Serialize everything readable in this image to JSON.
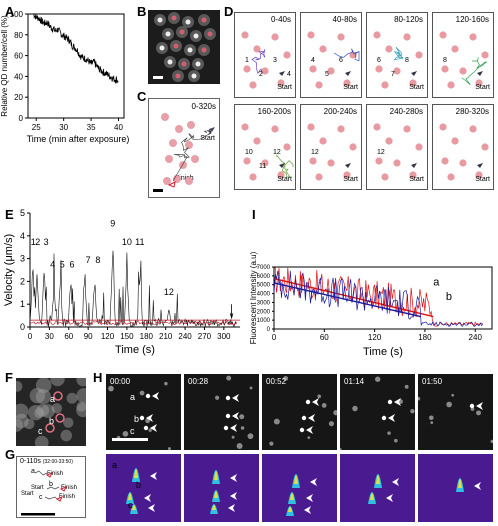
{
  "panels": {
    "A": {
      "label": "A"
    },
    "B": {
      "label": "B"
    },
    "C": {
      "label": "C",
      "time": "0-320s",
      "start": "Start",
      "finish": "Finish"
    },
    "D": {
      "label": "D",
      "frames": [
        {
          "t": "0-40s",
          "start": "Start",
          "nums": [
            "1",
            "2",
            "3",
            "4"
          ]
        },
        {
          "t": "40-80s",
          "start": "Start",
          "nums": [
            "4",
            "5",
            "6"
          ]
        },
        {
          "t": "80-120s",
          "start": "Start",
          "nums": [
            "6",
            "7",
            "8"
          ]
        },
        {
          "t": "120-160s",
          "start": "Start",
          "nums": [
            "8"
          ]
        },
        {
          "t": "160-200s",
          "start": "Start",
          "nums": [
            "10",
            "11",
            "12"
          ]
        },
        {
          "t": "200-240s",
          "start": "Start",
          "nums": [
            "12"
          ]
        },
        {
          "t": "240-280s",
          "start": "Start",
          "nums": [
            "12"
          ]
        },
        {
          "t": "280-320s",
          "start": "Start",
          "nums": []
        }
      ]
    },
    "E": {
      "label": "E"
    },
    "F": {
      "label": "F",
      "spots": [
        "a",
        "b",
        "c"
      ]
    },
    "G": {
      "label": "G",
      "time": "0-110s",
      "sub": "(32:00-33:50)",
      "start": "Start",
      "finish": "Finish",
      "spots": [
        "a",
        "b",
        "c"
      ]
    },
    "H": {
      "label": "H",
      "frames": [
        "00:00",
        "00:28",
        "00:52",
        "01:14",
        "01:50"
      ],
      "spots": [
        "a",
        "b",
        "c"
      ]
    },
    "I": {
      "label": "I"
    }
  },
  "chart_data": [
    {
      "panel": "A",
      "type": "line",
      "xlabel": "Time (min after exposure)",
      "ylabel": "Relative QD number/cell (%)",
      "xlim": [
        23.5,
        41
      ],
      "ylim": [
        0,
        100
      ],
      "xticks": [
        25,
        30,
        35,
        40
      ],
      "yticks": [
        0,
        20,
        40,
        60,
        80,
        100
      ],
      "x": [
        24.5,
        25,
        25.5,
        26,
        26.5,
        27,
        27.5,
        28,
        28.5,
        29,
        29.5,
        30,
        30.5,
        31,
        31.5,
        32,
        32.5,
        33,
        33.5,
        34,
        34.5,
        35,
        35.5,
        36,
        36.5,
        37,
        37.5,
        38,
        38.5,
        39,
        39.5,
        40
      ],
      "values": [
        100,
        97,
        96,
        93,
        91,
        92,
        88,
        86,
        84,
        85,
        81,
        79,
        77,
        75,
        70,
        68,
        65,
        60,
        58,
        57,
        55,
        52,
        54,
        50,
        47,
        45,
        43,
        42,
        40,
        38,
        37,
        36
      ]
    },
    {
      "panel": "E",
      "type": "line",
      "xlabel": "Time (s)",
      "ylabel": "Velocity (μm/s)",
      "xlim": [
        0,
        325
      ],
      "ylim": [
        0,
        5
      ],
      "xticks": [
        0,
        30,
        60,
        90,
        120,
        150,
        180,
        210,
        240,
        270,
        300
      ],
      "yticks": [
        0,
        1,
        2,
        3,
        4,
        5
      ],
      "threshold": 0.3,
      "annotations": [
        {
          "text": "1",
          "x": 5,
          "y": 3.6
        },
        {
          "text": "2",
          "x": 12,
          "y": 3.6
        },
        {
          "text": "3",
          "x": 25,
          "y": 3.6
        },
        {
          "text": "4",
          "x": 35,
          "y": 2.6
        },
        {
          "text": "5",
          "x": 50,
          "y": 2.6
        },
        {
          "text": "6",
          "x": 65,
          "y": 2.6
        },
        {
          "text": "7",
          "x": 90,
          "y": 2.8
        },
        {
          "text": "8",
          "x": 105,
          "y": 2.8
        },
        {
          "text": "9",
          "x": 128,
          "y": 4.4
        },
        {
          "text": "10",
          "x": 150,
          "y": 3.6
        },
        {
          "text": "11",
          "x": 170,
          "y": 3.6
        },
        {
          "text": "12",
          "x": 215,
          "y": 1.4
        }
      ],
      "peaks": [
        {
          "x": 4,
          "y": 3.2
        },
        {
          "x": 11,
          "y": 3.0
        },
        {
          "x": 22,
          "y": 3.1
        },
        {
          "x": 37,
          "y": 2.2
        },
        {
          "x": 47,
          "y": 2.3
        },
        {
          "x": 63,
          "y": 2.4
        },
        {
          "x": 85,
          "y": 2.5
        },
        {
          "x": 100,
          "y": 2.6
        },
        {
          "x": 128,
          "y": 4.6
        },
        {
          "x": 150,
          "y": 3.3
        },
        {
          "x": 170,
          "y": 3.2
        },
        {
          "x": 215,
          "y": 1.1
        }
      ]
    },
    {
      "panel": "I",
      "type": "line",
      "xlabel": "Time (s)",
      "ylabel": "Fluorescent Intensity (a.u)",
      "xlim": [
        0,
        260
      ],
      "ylim": [
        0,
        7000
      ],
      "xticks": [
        0,
        60,
        120,
        180,
        240
      ],
      "yticks": [
        0,
        1000,
        2000,
        3000,
        4000,
        5000,
        6000,
        7000
      ],
      "series": [
        {
          "name": "a",
          "color": "#e01010",
          "end_x": 190,
          "start_y": 5700
        },
        {
          "name": "b",
          "color": "#1a1aa0",
          "end_x": 175,
          "start_y": 5200
        }
      ]
    }
  ]
}
